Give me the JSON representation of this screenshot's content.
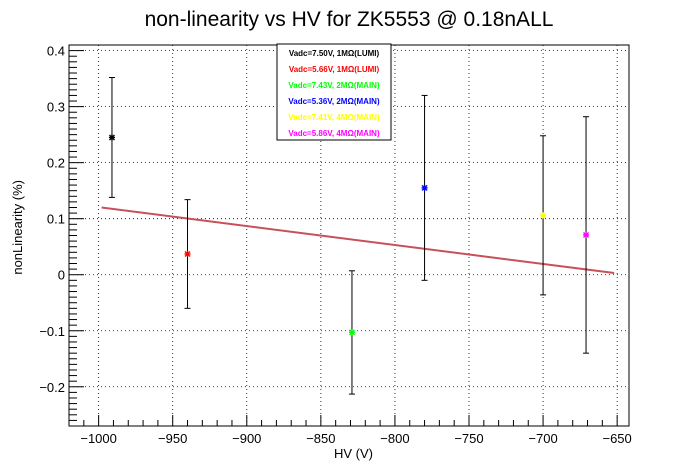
{
  "chart_data": {
    "type": "scatter",
    "title": "non-linearity vs HV for ZK5553 @ 0.18nALL",
    "xlabel": "HV (V)",
    "ylabel": "nonLinearity (%)",
    "xlim": [
      -1020,
      -642
    ],
    "ylim": [
      -0.27,
      0.41
    ],
    "x_ticks": [
      -1000,
      -950,
      -900,
      -850,
      -800,
      -750,
      -700,
      -650
    ],
    "x_tick_labels": [
      "−1000",
      "−950",
      "−900",
      "−850",
      "−800",
      "−750",
      "−700",
      "−650"
    ],
    "y_ticks": [
      -0.2,
      -0.1,
      0,
      0.1,
      0.2,
      0.3,
      0.4
    ],
    "y_tick_labels": [
      "−0.2",
      "−0.1",
      "0",
      "0.1",
      "0.2",
      "0.3",
      "0.4"
    ],
    "grid": true,
    "legend_position": "top-center",
    "series": [
      {
        "name": "Vadc=7.50V, 1MΩ(LUMI)",
        "color": "#000000",
        "x": -991,
        "y": 0.245,
        "err": 0.107
      },
      {
        "name": "Vadc=5.66V, 1MΩ(LUMI)",
        "color": "#ff0000",
        "x": -940,
        "y": 0.037,
        "err": 0.097
      },
      {
        "name": "Vadc=7.43V, 2MΩ(MAIN)",
        "color": "#00ff00",
        "x": -829,
        "y": -0.103,
        "err": 0.11
      },
      {
        "name": "Vadc=5.36V, 2MΩ(MAIN)",
        "color": "#0000ff",
        "x": -780,
        "y": 0.155,
        "err": 0.165
      },
      {
        "name": "Vadc=7.41V, 4MΩ(MAIN)",
        "color": "#ffff00",
        "x": -700,
        "y": 0.106,
        "err": 0.142
      },
      {
        "name": "Vadc=5.86V, 4MΩ(MAIN)",
        "color": "#ff00ff",
        "x": -671,
        "y": 0.071,
        "err": 0.211
      }
    ],
    "fit_line": {
      "color": "#c8505a",
      "x": [
        -998,
        -652
      ],
      "y": [
        0.12,
        0.003
      ]
    }
  }
}
